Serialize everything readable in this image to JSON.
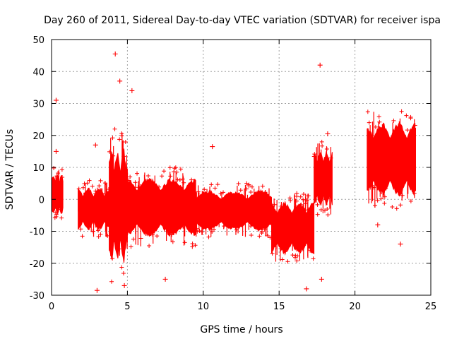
{
  "chart_data": {
    "type": "scatter",
    "title": "Day 260 of 2011, Sidereal Day-to-day VTEC variation (SDTVAR) for receiver ispa",
    "xlabel": "GPS time / hours",
    "ylabel": "SDTVAR / TECUs",
    "xlim": [
      0,
      25
    ],
    "ylim": [
      -30,
      50
    ],
    "xticks": [
      0,
      5,
      10,
      15,
      20,
      25
    ],
    "yticks": [
      -30,
      -20,
      -10,
      0,
      10,
      20,
      30,
      40,
      50
    ],
    "grid": true,
    "marker": "+",
    "color": "#ff0000",
    "series": [
      {
        "name": "SDTVAR",
        "segments": [
          {
            "x_start": 0.0,
            "x_end": 0.75,
            "y_low": -7,
            "y_high": 10
          },
          {
            "x_start": 1.75,
            "x_end": 3.8,
            "y_low": -12,
            "y_high": 6
          },
          {
            "x_start": 3.8,
            "x_end": 5.0,
            "y_low": -26,
            "y_high": 22
          },
          {
            "x_start": 5.0,
            "x_end": 9.5,
            "y_low": -15,
            "y_high": 10
          },
          {
            "x_start": 9.5,
            "x_end": 14.5,
            "y_low": -12,
            "y_high": 5
          },
          {
            "x_start": 14.5,
            "x_end": 17.3,
            "y_low": -20,
            "y_high": 2
          },
          {
            "x_start": 17.3,
            "x_end": 18.5,
            "y_low": -5,
            "y_high": 18
          },
          {
            "x_start": 20.8,
            "x_end": 24.0,
            "y_low": -3,
            "y_high": 28
          }
        ],
        "outliers": [
          {
            "x": 0.3,
            "y": 31
          },
          {
            "x": 4.2,
            "y": 45.5
          },
          {
            "x": 4.5,
            "y": 37
          },
          {
            "x": 5.3,
            "y": 34
          },
          {
            "x": 17.7,
            "y": 42
          },
          {
            "x": 3.0,
            "y": -28.5
          },
          {
            "x": 16.8,
            "y": -28
          },
          {
            "x": 17.8,
            "y": -25
          },
          {
            "x": 7.5,
            "y": -25
          },
          {
            "x": 21.5,
            "y": -8
          },
          {
            "x": 23.0,
            "y": -14
          },
          {
            "x": 10.6,
            "y": 16.5
          },
          {
            "x": 23.2,
            "y": 19.5
          },
          {
            "x": 2.9,
            "y": 17
          },
          {
            "x": 0.3,
            "y": 15
          },
          {
            "x": 18.2,
            "y": 20.5
          },
          {
            "x": 4.8,
            "y": -27
          }
        ]
      }
    ]
  }
}
